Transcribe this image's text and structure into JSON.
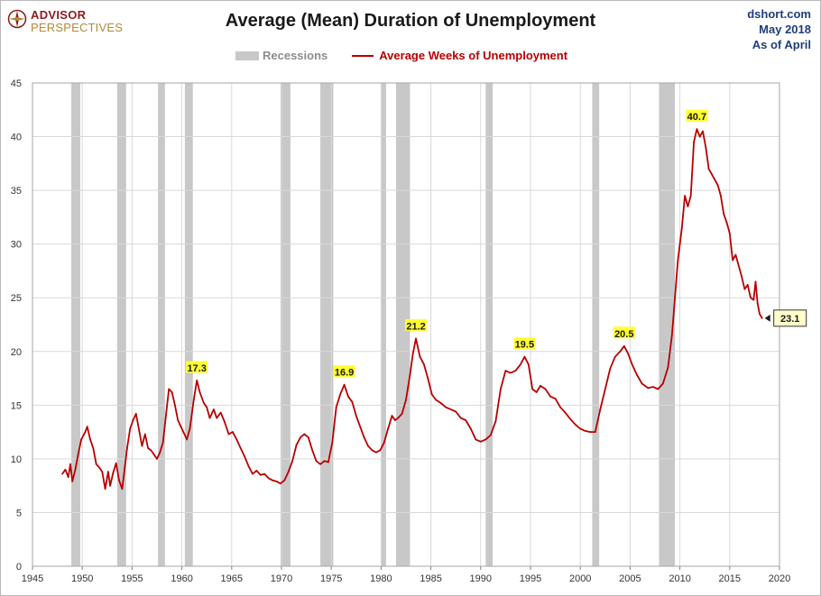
{
  "header": {
    "logo_line1": "ADVISOR",
    "logo_line2": "PERSPECTIVES",
    "source_lines": [
      "dshort.com",
      "May 2018",
      "As of April"
    ]
  },
  "colors": {
    "line": "#b80000",
    "recession": "#c8c8c8",
    "label_bg": "#ffff33",
    "grid": "#d9d9d9"
  },
  "chart_data": {
    "type": "line",
    "title": "Average (Mean) Duration of Unemployment",
    "xlabel": "",
    "ylabel": "",
    "xlim": [
      1945,
      2020
    ],
    "ylim": [
      0,
      45
    ],
    "xticks": [
      1945,
      1950,
      1955,
      1960,
      1965,
      1970,
      1975,
      1980,
      1985,
      1990,
      1995,
      2000,
      2005,
      2010,
      2015,
      2020
    ],
    "yticks": [
      0,
      5,
      10,
      15,
      20,
      25,
      30,
      35,
      40,
      45
    ],
    "grid": true,
    "legend": {
      "position": "top-center",
      "recessions_label": "Recessions",
      "line_label": "Average Weeks of Unemployment"
    },
    "recessions": [
      [
        1948.9,
        1949.8
      ],
      [
        1953.5,
        1954.4
      ],
      [
        1957.6,
        1958.3
      ],
      [
        1960.3,
        1961.1
      ],
      [
        1969.9,
        1970.9
      ],
      [
        1973.9,
        1975.2
      ],
      [
        1980.0,
        1980.5
      ],
      [
        1981.5,
        1982.9
      ],
      [
        1990.5,
        1991.2
      ],
      [
        2001.2,
        2001.9
      ],
      [
        2007.9,
        2009.5
      ]
    ],
    "series": [
      {
        "name": "Average Weeks of Unemployment",
        "points": [
          [
            1948.0,
            8.6
          ],
          [
            1948.3,
            9.0
          ],
          [
            1948.6,
            8.3
          ],
          [
            1948.8,
            9.5
          ],
          [
            1949.0,
            7.9
          ],
          [
            1949.3,
            9.0
          ],
          [
            1949.6,
            10.5
          ],
          [
            1949.9,
            11.8
          ],
          [
            1950.3,
            12.5
          ],
          [
            1950.5,
            13.0
          ],
          [
            1950.8,
            11.8
          ],
          [
            1951.1,
            11.0
          ],
          [
            1951.4,
            9.5
          ],
          [
            1951.7,
            9.2
          ],
          [
            1952.0,
            8.8
          ],
          [
            1952.3,
            7.2
          ],
          [
            1952.6,
            8.8
          ],
          [
            1952.8,
            7.5
          ],
          [
            1953.1,
            8.7
          ],
          [
            1953.4,
            9.6
          ],
          [
            1953.7,
            8.0
          ],
          [
            1954.0,
            7.2
          ],
          [
            1954.2,
            8.7
          ],
          [
            1954.5,
            11.0
          ],
          [
            1954.8,
            12.8
          ],
          [
            1955.1,
            13.6
          ],
          [
            1955.4,
            14.2
          ],
          [
            1955.7,
            12.7
          ],
          [
            1956.0,
            11.2
          ],
          [
            1956.3,
            12.3
          ],
          [
            1956.6,
            11.0
          ],
          [
            1956.9,
            10.8
          ],
          [
            1957.2,
            10.4
          ],
          [
            1957.5,
            10.0
          ],
          [
            1957.8,
            10.6
          ],
          [
            1958.1,
            11.5
          ],
          [
            1958.4,
            14.0
          ],
          [
            1958.7,
            16.5
          ],
          [
            1959.0,
            16.2
          ],
          [
            1959.3,
            15.0
          ],
          [
            1959.6,
            13.6
          ],
          [
            1959.9,
            13.0
          ],
          [
            1960.2,
            12.4
          ],
          [
            1960.5,
            11.8
          ],
          [
            1960.8,
            12.8
          ],
          [
            1961.2,
            15.5
          ],
          [
            1961.5,
            17.3
          ],
          [
            1961.8,
            16.2
          ],
          [
            1962.2,
            15.2
          ],
          [
            1962.5,
            14.8
          ],
          [
            1962.8,
            13.8
          ],
          [
            1963.2,
            14.6
          ],
          [
            1963.5,
            13.8
          ],
          [
            1963.9,
            14.3
          ],
          [
            1964.3,
            13.4
          ],
          [
            1964.7,
            12.3
          ],
          [
            1965.1,
            12.5
          ],
          [
            1965.5,
            11.8
          ],
          [
            1965.9,
            11.0
          ],
          [
            1966.3,
            10.2
          ],
          [
            1966.7,
            9.3
          ],
          [
            1967.1,
            8.6
          ],
          [
            1967.5,
            8.9
          ],
          [
            1967.9,
            8.5
          ],
          [
            1968.3,
            8.6
          ],
          [
            1968.7,
            8.2
          ],
          [
            1969.1,
            8.0
          ],
          [
            1969.5,
            7.9
          ],
          [
            1969.9,
            7.7
          ],
          [
            1970.3,
            8.0
          ],
          [
            1970.7,
            8.8
          ],
          [
            1971.1,
            9.8
          ],
          [
            1971.5,
            11.3
          ],
          [
            1971.9,
            12.0
          ],
          [
            1972.3,
            12.3
          ],
          [
            1972.7,
            12.0
          ],
          [
            1973.1,
            10.8
          ],
          [
            1973.5,
            9.8
          ],
          [
            1973.9,
            9.5
          ],
          [
            1974.3,
            9.8
          ],
          [
            1974.7,
            9.7
          ],
          [
            1975.1,
            11.5
          ],
          [
            1975.5,
            14.8
          ],
          [
            1975.9,
            16.0
          ],
          [
            1976.3,
            16.9
          ],
          [
            1976.7,
            15.8
          ],
          [
            1977.1,
            15.3
          ],
          [
            1977.5,
            14.0
          ],
          [
            1977.9,
            13.0
          ],
          [
            1978.3,
            12.0
          ],
          [
            1978.7,
            11.2
          ],
          [
            1979.1,
            10.8
          ],
          [
            1979.5,
            10.6
          ],
          [
            1979.9,
            10.8
          ],
          [
            1980.3,
            11.5
          ],
          [
            1980.7,
            12.8
          ],
          [
            1981.1,
            14.0
          ],
          [
            1981.4,
            13.6
          ],
          [
            1981.7,
            13.8
          ],
          [
            1982.1,
            14.2
          ],
          [
            1982.5,
            15.5
          ],
          [
            1982.9,
            17.8
          ],
          [
            1983.2,
            19.8
          ],
          [
            1983.5,
            21.2
          ],
          [
            1983.9,
            19.5
          ],
          [
            1984.3,
            18.8
          ],
          [
            1984.7,
            17.5
          ],
          [
            1985.1,
            16.0
          ],
          [
            1985.5,
            15.5
          ],
          [
            1986.0,
            15.2
          ],
          [
            1986.5,
            14.8
          ],
          [
            1987.0,
            14.6
          ],
          [
            1987.5,
            14.4
          ],
          [
            1988.0,
            13.8
          ],
          [
            1988.5,
            13.6
          ],
          [
            1989.0,
            12.8
          ],
          [
            1989.5,
            11.8
          ],
          [
            1990.0,
            11.6
          ],
          [
            1990.5,
            11.8
          ],
          [
            1991.0,
            12.2
          ],
          [
            1991.5,
            13.5
          ],
          [
            1992.0,
            16.5
          ],
          [
            1992.5,
            18.2
          ],
          [
            1993.0,
            18.0
          ],
          [
            1993.5,
            18.2
          ],
          [
            1994.0,
            18.8
          ],
          [
            1994.4,
            19.5
          ],
          [
            1994.8,
            18.8
          ],
          [
            1995.2,
            16.5
          ],
          [
            1995.6,
            16.2
          ],
          [
            1996.0,
            16.8
          ],
          [
            1996.5,
            16.5
          ],
          [
            1997.0,
            15.8
          ],
          [
            1997.5,
            15.6
          ],
          [
            1998.0,
            14.8
          ],
          [
            1998.5,
            14.3
          ],
          [
            1999.0,
            13.7
          ],
          [
            1999.5,
            13.2
          ],
          [
            2000.0,
            12.8
          ],
          [
            2000.5,
            12.6
          ],
          [
            2001.0,
            12.5
          ],
          [
            2001.5,
            12.5
          ],
          [
            2002.0,
            14.6
          ],
          [
            2002.5,
            16.5
          ],
          [
            2003.0,
            18.4
          ],
          [
            2003.5,
            19.5
          ],
          [
            2004.0,
            20.0
          ],
          [
            2004.4,
            20.5
          ],
          [
            2004.8,
            19.8
          ],
          [
            2005.2,
            18.8
          ],
          [
            2005.7,
            17.8
          ],
          [
            2006.2,
            17.0
          ],
          [
            2006.8,
            16.6
          ],
          [
            2007.3,
            16.7
          ],
          [
            2007.8,
            16.5
          ],
          [
            2008.3,
            17.0
          ],
          [
            2008.8,
            18.5
          ],
          [
            2009.2,
            21.5
          ],
          [
            2009.5,
            25.0
          ],
          [
            2009.8,
            28.5
          ],
          [
            2010.2,
            31.5
          ],
          [
            2010.5,
            34.5
          ],
          [
            2010.8,
            33.5
          ],
          [
            2011.1,
            34.5
          ],
          [
            2011.4,
            39.5
          ],
          [
            2011.7,
            40.7
          ],
          [
            2012.0,
            40.0
          ],
          [
            2012.3,
            40.5
          ],
          [
            2012.6,
            39.0
          ],
          [
            2012.9,
            37.0
          ],
          [
            2013.2,
            36.5
          ],
          [
            2013.5,
            36.0
          ],
          [
            2013.8,
            35.5
          ],
          [
            2014.1,
            34.5
          ],
          [
            2014.4,
            32.8
          ],
          [
            2014.7,
            32.0
          ],
          [
            2015.0,
            31.0
          ],
          [
            2015.3,
            28.5
          ],
          [
            2015.6,
            29.0
          ],
          [
            2015.9,
            28.0
          ],
          [
            2016.2,
            27.0
          ],
          [
            2016.5,
            25.8
          ],
          [
            2016.8,
            26.2
          ],
          [
            2017.1,
            25.0
          ],
          [
            2017.4,
            24.8
          ],
          [
            2017.6,
            26.5
          ],
          [
            2017.8,
            24.5
          ],
          [
            2018.0,
            23.5
          ],
          [
            2018.25,
            23.1
          ]
        ]
      }
    ],
    "annotations": [
      {
        "x": 1961.5,
        "y": 17.3,
        "label": "17.3"
      },
      {
        "x": 1976.3,
        "y": 16.9,
        "label": "16.9"
      },
      {
        "x": 1983.5,
        "y": 21.2,
        "label": "21.2"
      },
      {
        "x": 1994.4,
        "y": 19.5,
        "label": "19.5"
      },
      {
        "x": 2004.4,
        "y": 20.5,
        "label": "20.5"
      },
      {
        "x": 2011.7,
        "y": 40.7,
        "label": "40.7"
      }
    ],
    "last_value": {
      "x": 2018.25,
      "y": 23.1,
      "label": "23.1"
    }
  }
}
